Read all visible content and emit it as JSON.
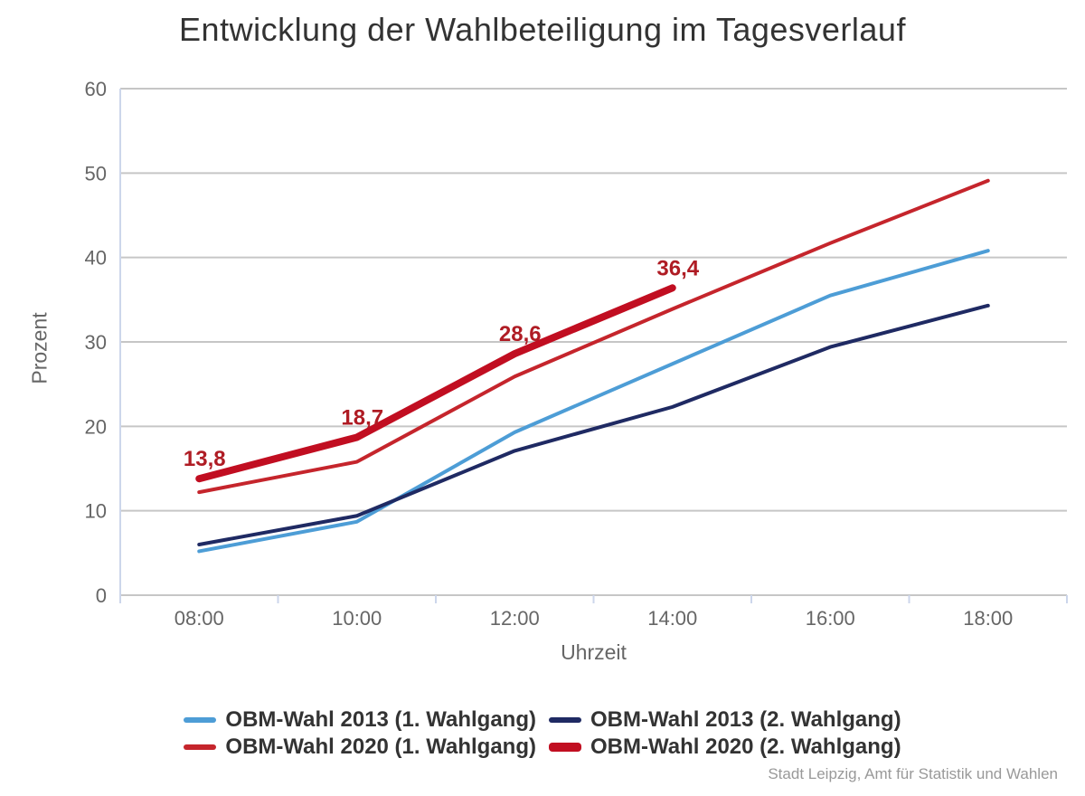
{
  "title": "Entwicklung der Wahlbeteiligung im Tagesverlauf",
  "credits": "Stadt Leipzig, Amt für Statistik und Wahlen",
  "colors": {
    "gridline": "#c6c6c6",
    "axis_line": "#ccd6eb",
    "tick": "#ccd6eb",
    "tick_label": "#666666",
    "axis_title": "#666666",
    "title_text": "#333333"
  },
  "chart_data": {
    "type": "line",
    "categories": [
      "08:00",
      "10:00",
      "12:00",
      "14:00",
      "16:00",
      "18:00"
    ],
    "xlabel": "Uhrzeit",
    "ylabel": "Prozent",
    "ylim": [
      0,
      60
    ],
    "yticks": [
      0,
      10,
      20,
      30,
      40,
      50,
      60
    ],
    "grid": true,
    "legend_position": "bottom",
    "series": [
      {
        "name": "OBM-Wahl 2013 (1. Wahlgang)",
        "color": "#4D9DD6",
        "line_width": 4,
        "values": [
          5.2,
          8.7,
          19.3,
          27.4,
          35.5,
          40.8
        ]
      },
      {
        "name": "OBM-Wahl 2013 (2. Wahlgang)",
        "color": "#1F2A63",
        "line_width": 4,
        "values": [
          6.0,
          9.4,
          17.1,
          22.3,
          29.4,
          34.3
        ]
      },
      {
        "name": "OBM-Wahl 2020 (1. Wahlgang)",
        "color": "#C5252C",
        "line_width": 4,
        "values": [
          12.2,
          15.8,
          25.9,
          33.9,
          41.7,
          49.1
        ]
      },
      {
        "name": "OBM-Wahl 2020 (2. Wahlgang)",
        "color": "#C10E21",
        "line_width": 8,
        "values": [
          13.8,
          18.7,
          28.6,
          36.4
        ],
        "data_labels": [
          "13,8",
          "18,7",
          "28,6",
          "36,4"
        ],
        "label_color": "#AF1C24"
      }
    ]
  }
}
